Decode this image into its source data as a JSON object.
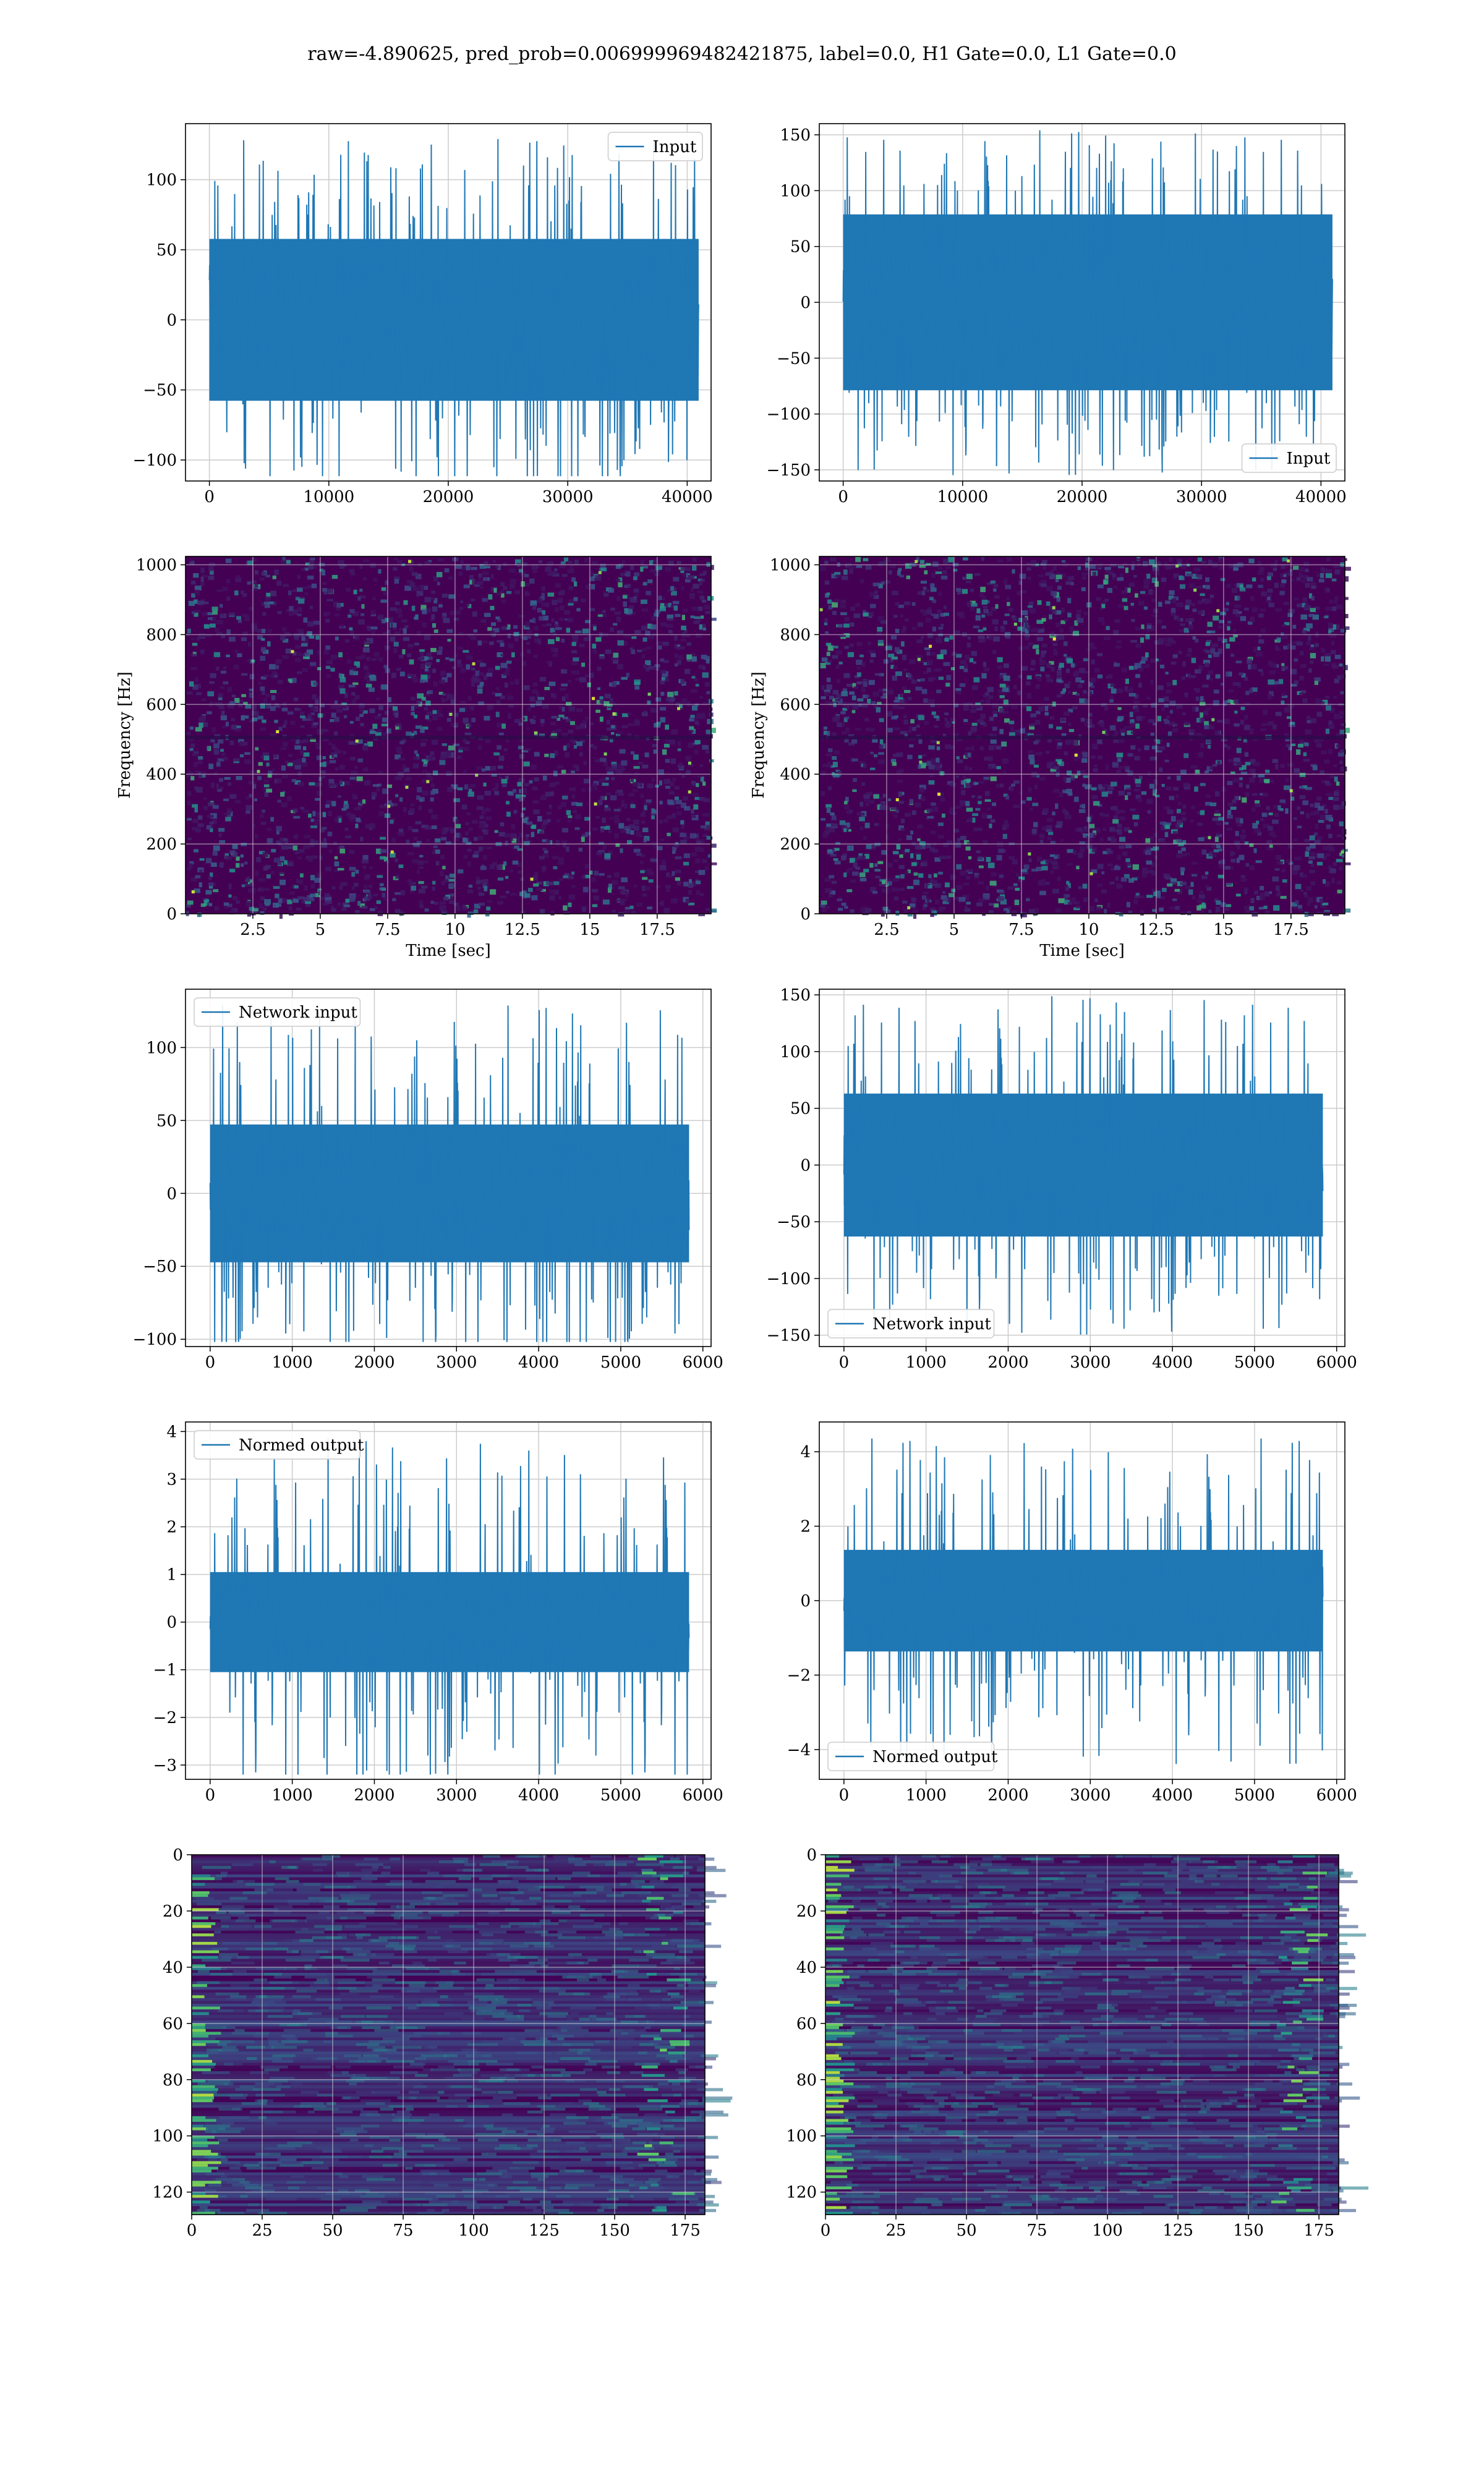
{
  "suptitle": "raw=-4.890625, pred_prob=0.006999969482421875, label=0.0, H1 Gate=0.0, L1 Gate=0.0",
  "colors": {
    "line": "#1f77b4",
    "viridis_dark": "#440154",
    "grid": "#cccccc"
  },
  "chart_data": [
    {
      "id": "r1c1",
      "type": "line",
      "series": [
        {
          "name": "Input",
          "values_summary": "dense noise, core band ≈ ±60, peaks ≈ ±100-130"
        }
      ],
      "xlim": [
        -2000,
        42000
      ],
      "ylim": [
        -115,
        140
      ],
      "xticks": [
        0,
        10000,
        20000,
        30000,
        40000
      ],
      "yticks": [
        -100,
        -50,
        0,
        50,
        100
      ],
      "legend": "upper right",
      "grid": true,
      "n": 40960,
      "core": 55,
      "peak": 130
    },
    {
      "id": "r1c2",
      "type": "line",
      "series": [
        {
          "name": "Input",
          "values_summary": "dense noise, core band ≈ ±75, peaks ≈ ±140-155"
        }
      ],
      "xlim": [
        -2000,
        42000
      ],
      "ylim": [
        -160,
        160
      ],
      "xticks": [
        0,
        10000,
        20000,
        30000,
        40000
      ],
      "yticks": [
        -150,
        -100,
        -50,
        0,
        50,
        100,
        150
      ],
      "legend": "lower right",
      "grid": true,
      "n": 40960,
      "core": 75,
      "peak": 155
    },
    {
      "id": "r2c1",
      "type": "heatmap",
      "xlabel": "Time [sec]",
      "ylabel": "Frequency [Hz]",
      "xlim": [
        0,
        19.5
      ],
      "ylim": [
        0,
        1024
      ],
      "xticks": [
        2.5,
        5.0,
        7.5,
        10.0,
        12.5,
        15.0,
        17.5
      ],
      "yticks": [
        0,
        200,
        400,
        600,
        800,
        1000
      ],
      "colormap": "viridis",
      "grid": true
    },
    {
      "id": "r2c2",
      "type": "heatmap",
      "xlabel": "Time [sec]",
      "ylabel": "Frequency [Hz]",
      "xlim": [
        0,
        19.5
      ],
      "ylim": [
        0,
        1024
      ],
      "xticks": [
        2.5,
        5.0,
        7.5,
        10.0,
        12.5,
        15.0,
        17.5
      ],
      "yticks": [
        0,
        200,
        400,
        600,
        800,
        1000
      ],
      "colormap": "viridis",
      "grid": true
    },
    {
      "id": "r3c1",
      "type": "line",
      "series": [
        {
          "name": "Network input",
          "values_summary": "noise, core ≈ ±50, peaks ≈ ±100-130"
        }
      ],
      "xlim": [
        -300,
        6100
      ],
      "ylim": [
        -105,
        140
      ],
      "xticks": [
        0,
        1000,
        2000,
        3000,
        4000,
        5000,
        6000
      ],
      "yticks": [
        -100,
        -50,
        0,
        50,
        100
      ],
      "legend": "upper left",
      "grid": true,
      "n": 5832,
      "core": 45,
      "peak": 130
    },
    {
      "id": "r3c2",
      "type": "line",
      "series": [
        {
          "name": "Network input",
          "values_summary": "noise, core ≈ ±60, peaks ≈ ±150"
        }
      ],
      "xlim": [
        -300,
        6100
      ],
      "ylim": [
        -160,
        155
      ],
      "xticks": [
        0,
        1000,
        2000,
        3000,
        4000,
        5000,
        6000
      ],
      "yticks": [
        -150,
        -100,
        -50,
        0,
        50,
        100,
        150
      ],
      "legend": "lower left",
      "grid": true,
      "n": 5832,
      "core": 60,
      "peak": 150
    },
    {
      "id": "r4c1",
      "type": "line",
      "series": [
        {
          "name": "Normed output",
          "values_summary": "noise, core ≈ ±1.1, peaks ≈ ±3-4"
        }
      ],
      "xlim": [
        -300,
        6100
      ],
      "ylim": [
        -3.3,
        4.2
      ],
      "xticks": [
        0,
        1000,
        2000,
        3000,
        4000,
        5000,
        6000
      ],
      "yticks": [
        -3,
        -2,
        -1,
        0,
        1,
        2,
        3,
        4
      ],
      "legend": "upper left",
      "grid": true,
      "n": 5832,
      "core": 1.0,
      "peak": 3.9
    },
    {
      "id": "r4c2",
      "type": "line",
      "series": [
        {
          "name": "Normed output",
          "values_summary": "noise, core ≈ ±1.3, peaks ≈ ±4.3"
        }
      ],
      "xlim": [
        -300,
        6100
      ],
      "ylim": [
        -4.8,
        4.8
      ],
      "xticks": [
        0,
        1000,
        2000,
        3000,
        4000,
        5000,
        6000
      ],
      "yticks": [
        -4,
        -2,
        0,
        2,
        4
      ],
      "legend": "lower left",
      "grid": true,
      "n": 5832,
      "core": 1.3,
      "peak": 4.4
    },
    {
      "id": "r5c1",
      "type": "heatmap",
      "xlim": [
        0,
        182
      ],
      "ylim": [
        128,
        0
      ],
      "xticks": [
        0,
        25,
        50,
        75,
        100,
        125,
        150,
        175
      ],
      "yticks": [
        0,
        20,
        40,
        60,
        80,
        100,
        120
      ],
      "colormap": "viridis",
      "grid": true
    },
    {
      "id": "r5c2",
      "type": "heatmap",
      "xlim": [
        0,
        182
      ],
      "ylim": [
        128,
        0
      ],
      "xticks": [
        0,
        25,
        50,
        75,
        100,
        125,
        150,
        175
      ],
      "yticks": [
        0,
        20,
        40,
        60,
        80,
        100,
        120
      ],
      "colormap": "viridis",
      "grid": true
    }
  ]
}
